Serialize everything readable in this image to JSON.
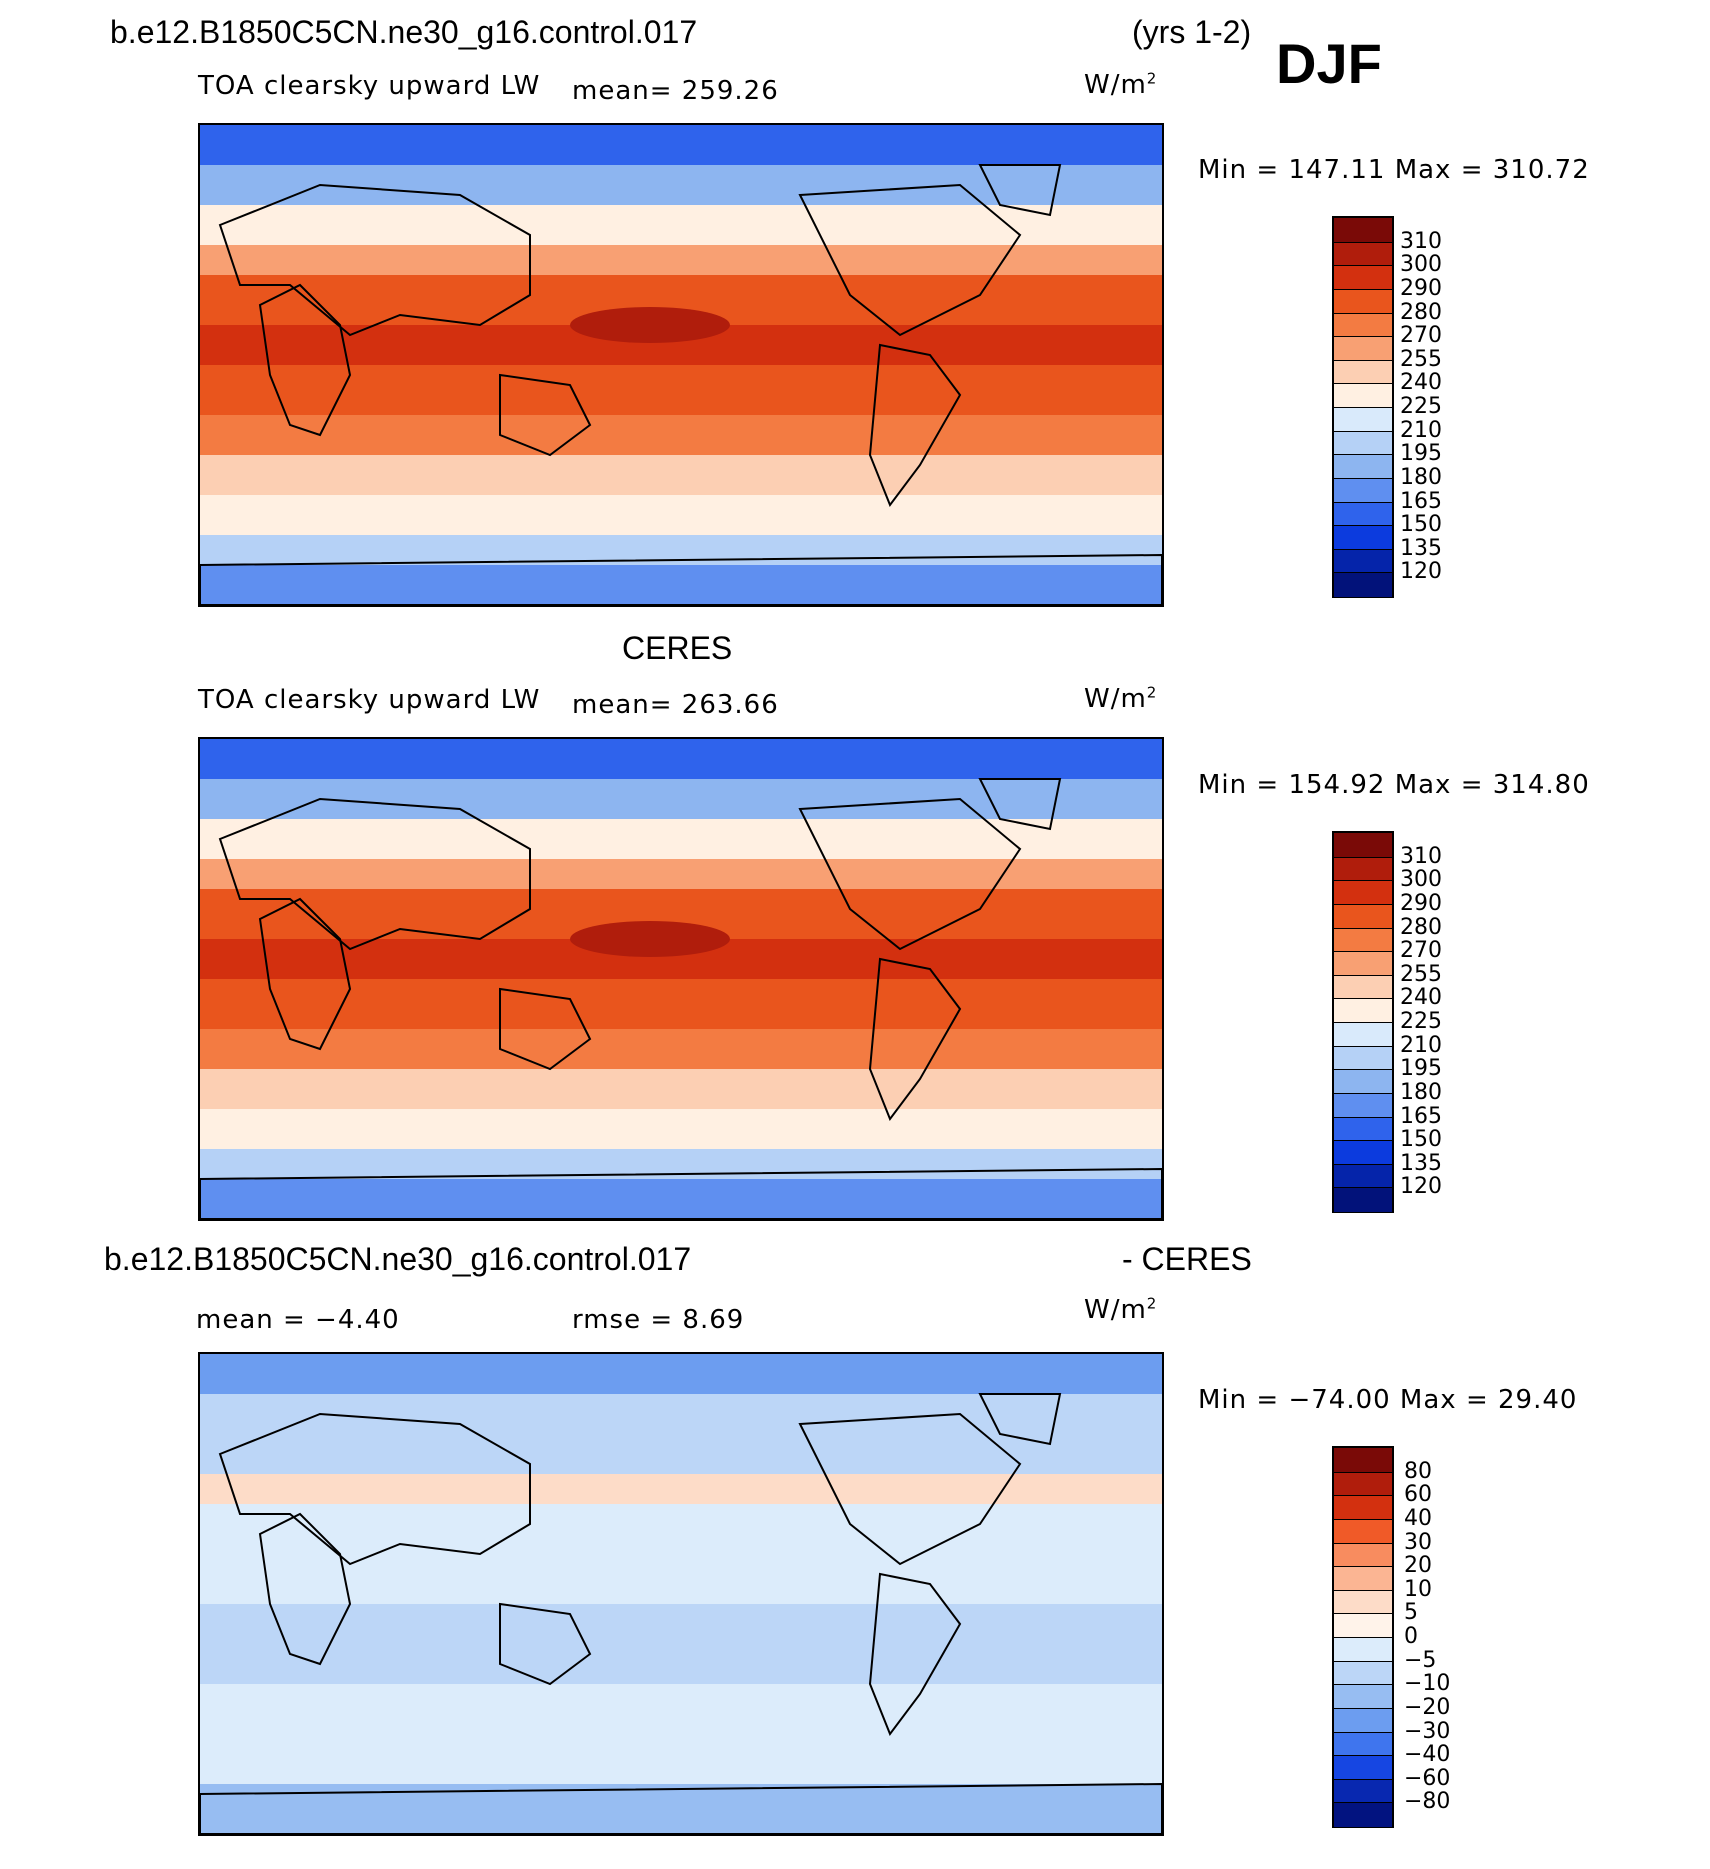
{
  "header": {
    "case_name": "b.e12.B1850C5CN.ne30_g16.control.017",
    "years": "(yrs 1-2)",
    "season": "DJF"
  },
  "panels": [
    {
      "id": "model",
      "title": "",
      "variable": "TOA clearsky upward LW",
      "stat_left": "mean= 259.26",
      "stat_right": "",
      "units": "W/m",
      "units_exp": "2",
      "minmax": "Min = 147.11 Max = 310.72",
      "colorbar_ticks": [
        "310",
        "300",
        "290",
        "280",
        "270",
        "255",
        "240",
        "225",
        "210",
        "195",
        "180",
        "165",
        "150",
        "135",
        "120"
      ],
      "colors": [
        "#7a0a07",
        "#b01d0c",
        "#d3300f",
        "#e9551d",
        "#f37b42",
        "#f8a073",
        "#fccfb3",
        "#fff0e2",
        "#d9eafb",
        "#b5d1f6",
        "#8db5f0",
        "#5f8ff0",
        "#2f63ec",
        "#0c3bde",
        "#0524aa",
        "#02127a"
      ]
    },
    {
      "id": "obs",
      "title": "CERES",
      "variable": "TOA clearsky upward LW",
      "stat_left": "mean= 263.66",
      "stat_right": "",
      "units": "W/m",
      "units_exp": "2",
      "minmax": "Min = 154.92 Max = 314.80",
      "colorbar_ticks": [
        "310",
        "300",
        "290",
        "280",
        "270",
        "255",
        "240",
        "225",
        "210",
        "195",
        "180",
        "165",
        "150",
        "135",
        "120"
      ],
      "colors": [
        "#7a0a07",
        "#b01d0c",
        "#d3300f",
        "#e9551d",
        "#f37b42",
        "#f8a073",
        "#fccfb3",
        "#fff0e2",
        "#d9eafb",
        "#b5d1f6",
        "#8db5f0",
        "#5f8ff0",
        "#2f63ec",
        "#0c3bde",
        "#0524aa",
        "#02127a"
      ]
    },
    {
      "id": "diff",
      "title_left": "b.e12.B1850C5CN.ne30_g16.control.017",
      "title_right": "- CERES",
      "stat_left": "mean =   −4.40",
      "stat_right": "rmse =    8.69",
      "units": "W/m",
      "units_exp": "2",
      "minmax": "Min = −74.00 Max =   29.40",
      "colorbar_ticks": [
        "80",
        "60",
        "40",
        "30",
        "20",
        "10",
        "5",
        "0",
        "−5",
        "−10",
        "−20",
        "−30",
        "−40",
        "−60",
        "−80"
      ],
      "colors": [
        "#7a0a07",
        "#b01d0c",
        "#d3300f",
        "#f05a28",
        "#f88c5f",
        "#fbb593",
        "#fddcc8",
        "#fff3ea",
        "#dcecfb",
        "#bcd6f7",
        "#97bdf2",
        "#6c9df0",
        "#3f75ee",
        "#1646e2",
        "#0828b0",
        "#021380"
      ]
    }
  ]
}
